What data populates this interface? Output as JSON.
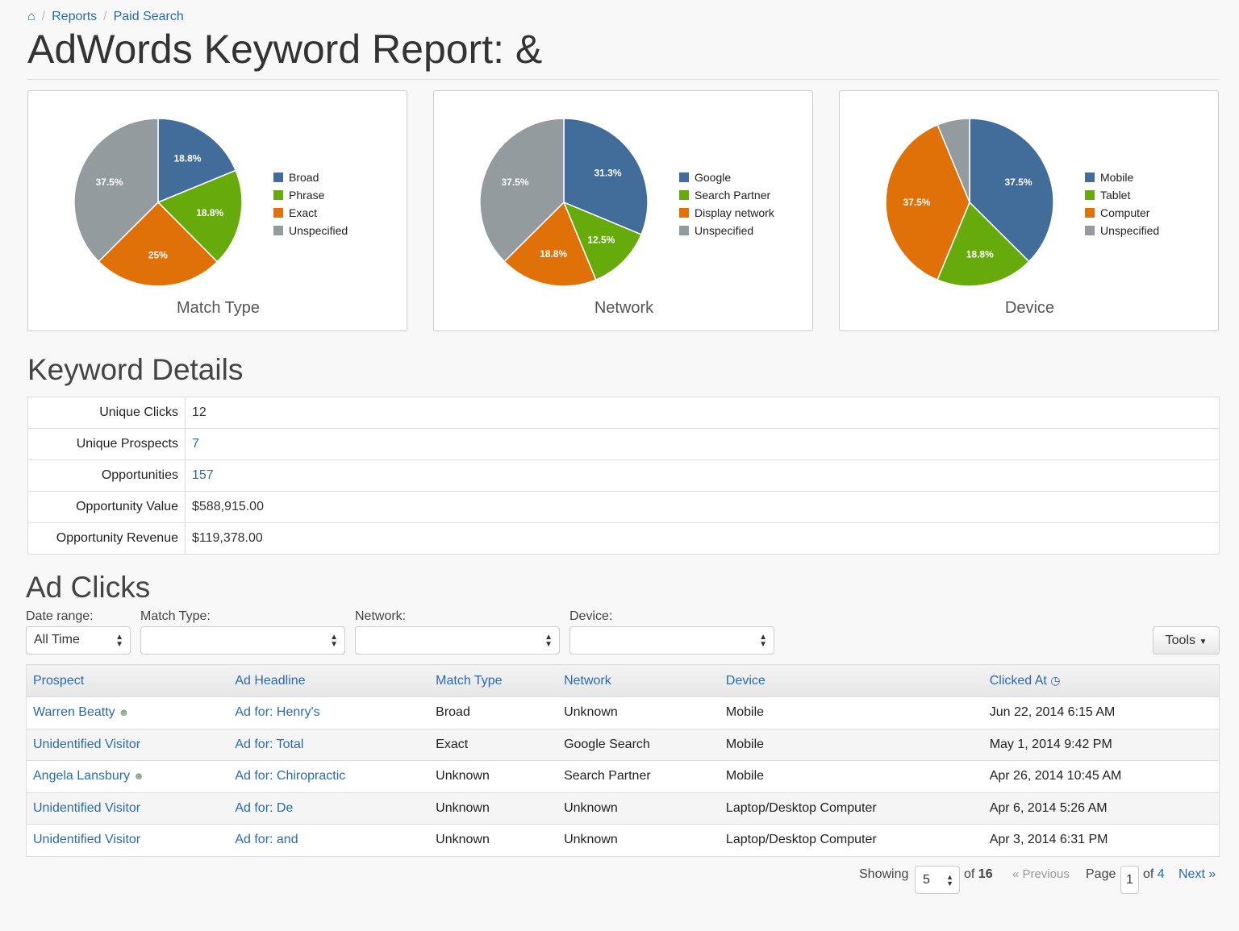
{
  "breadcrumb": {
    "home_icon": "home-icon",
    "items": [
      "Reports",
      "Paid Search"
    ]
  },
  "title": "AdWords Keyword Report: &",
  "chart_data": [
    {
      "type": "pie",
      "title": "Match Type",
      "labels": [
        "Broad",
        "Phrase",
        "Exact",
        "Unspecified"
      ],
      "values": [
        18.8,
        18.8,
        25,
        37.5
      ],
      "value_labels": [
        "18.8%",
        "18.8%",
        "25%",
        "37.5%"
      ],
      "colors": [
        "#426d9b",
        "#66ab0b",
        "#e07008",
        "#949b9f"
      ],
      "legend": "right"
    },
    {
      "type": "pie",
      "title": "Network",
      "labels": [
        "Google",
        "Search Partner",
        "Display network",
        "Unspecified"
      ],
      "values": [
        31.3,
        12.5,
        18.8,
        37.5
      ],
      "value_labels": [
        "31.3%",
        "12.5%",
        "18.8%",
        "37.5%"
      ],
      "colors": [
        "#426d9b",
        "#66ab0b",
        "#e07008",
        "#949b9f"
      ],
      "legend": "right"
    },
    {
      "type": "pie",
      "title": "Device",
      "labels": [
        "Mobile",
        "Tablet",
        "Computer",
        "Unspecified"
      ],
      "values": [
        37.5,
        18.8,
        37.5,
        6.25
      ],
      "value_labels": [
        "37.5%",
        "18.8%",
        "37.5%",
        ""
      ],
      "colors": [
        "#426d9b",
        "#66ab0b",
        "#e07008",
        "#949b9f"
      ],
      "legend": "right"
    }
  ],
  "keyword_details": {
    "heading": "Keyword Details",
    "rows": [
      {
        "label": "Unique Clicks",
        "value": "12",
        "link": false
      },
      {
        "label": "Unique Prospects",
        "value": "7",
        "link": true
      },
      {
        "label": "Opportunities",
        "value": "157",
        "link": true
      },
      {
        "label": "Opportunity Value",
        "value": "$588,915.00",
        "link": false
      },
      {
        "label": "Opportunity Revenue",
        "value": "$119,378.00",
        "link": false
      }
    ]
  },
  "ad_clicks": {
    "heading": "Ad Clicks",
    "filters": {
      "date_range_label": "Date range:",
      "date_range_value": "All Time",
      "match_type_label": "Match Type:",
      "network_label": "Network:",
      "device_label": "Device:"
    },
    "tools_label": "Tools",
    "columns": [
      "Prospect",
      "Ad Headline",
      "Match Type",
      "Network",
      "Device",
      "Clicked At"
    ],
    "rows": [
      {
        "prospect": "Warren Beatty",
        "known": true,
        "headline": "Ad for: Henry's",
        "match": "Broad",
        "network": "Unknown",
        "device": "Mobile",
        "clicked": "Jun 22, 2014 6:15 AM"
      },
      {
        "prospect": "Unidentified Visitor",
        "known": false,
        "headline": "Ad for: Total",
        "match": "Exact",
        "network": "Google Search",
        "device": "Mobile",
        "clicked": "May 1, 2014 9:42 PM"
      },
      {
        "prospect": "Angela Lansbury",
        "known": true,
        "headline": "Ad for: Chiropractic",
        "match": "Unknown",
        "network": "Search Partner",
        "device": "Mobile",
        "clicked": "Apr 26, 2014 10:45 AM"
      },
      {
        "prospect": "Unidentified Visitor",
        "known": false,
        "headline": "Ad for: De",
        "match": "Unknown",
        "network": "Unknown",
        "device": "Laptop/Desktop Computer",
        "clicked": "Apr 6, 2014 5:26 AM"
      },
      {
        "prospect": "Unidentified Visitor",
        "known": false,
        "headline": "Ad for: and",
        "match": "Unknown",
        "network": "Unknown",
        "device": "Laptop/Desktop Computer",
        "clicked": "Apr 3, 2014 6:31 PM"
      }
    ]
  },
  "pagination": {
    "showing_label": "Showing",
    "per_page": "5",
    "of_label": "of",
    "total": "16",
    "previous": "« Previous",
    "page_label": "Page",
    "page": "1",
    "pages": "4",
    "next": "Next »"
  }
}
